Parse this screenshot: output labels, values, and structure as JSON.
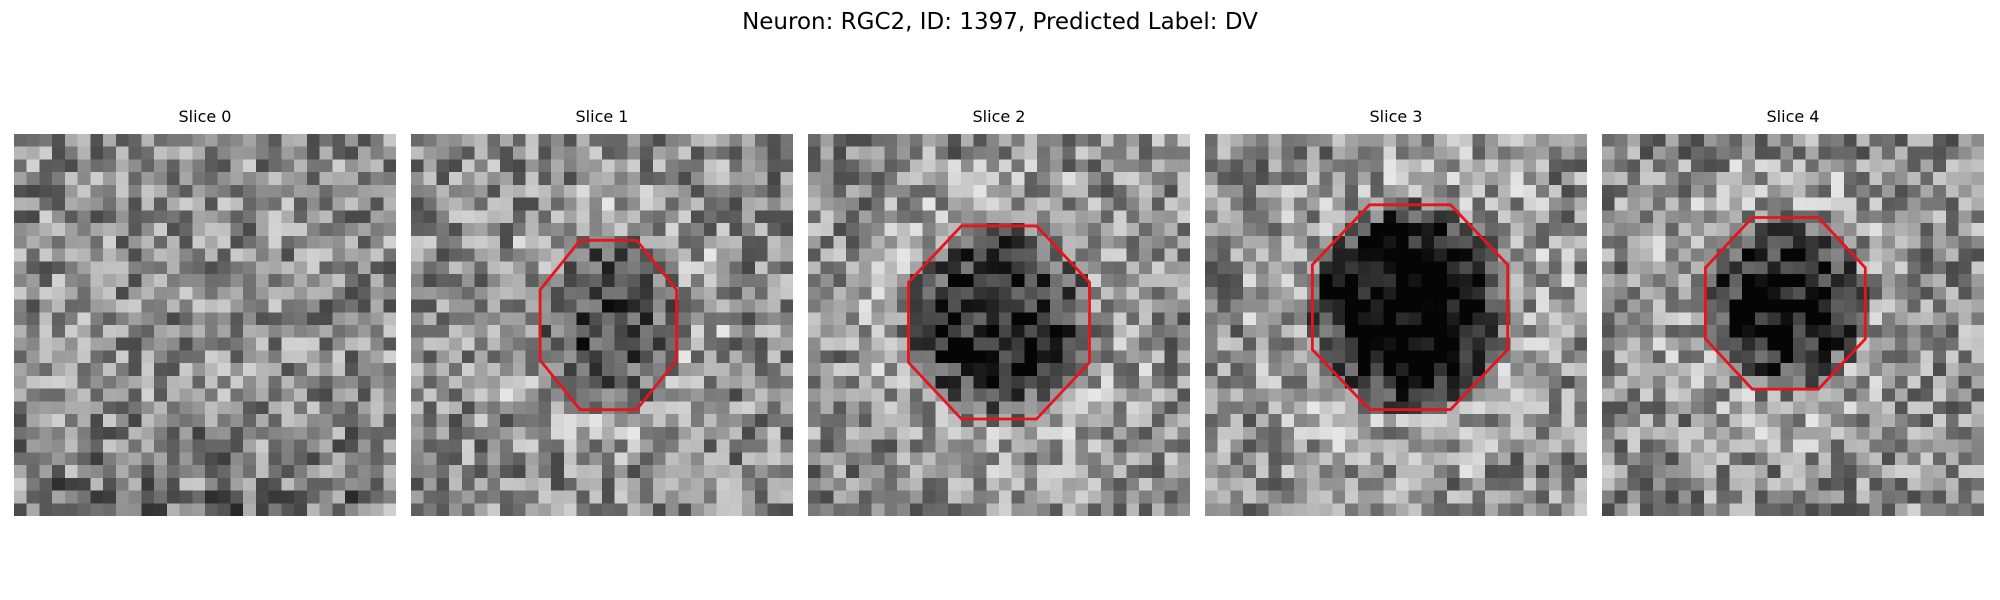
{
  "figure": {
    "title": "Neuron: RGC2, ID: 1397, Predicted Label: DV"
  },
  "colors": {
    "contour": "#e8141b",
    "background": "#ffffff"
  },
  "image_grid": {
    "rows": 30,
    "cols": 30,
    "colormap": "gray"
  },
  "slices": [
    {
      "label": "Slice 0",
      "has_contour": false,
      "center_darkness": 0.0,
      "seed": 11
    },
    {
      "label": "Slice 1",
      "has_contour": true,
      "center_darkness": 0.35,
      "seed": 23
    },
    {
      "label": "Slice 2",
      "has_contour": true,
      "center_darkness": 0.55,
      "seed": 37
    },
    {
      "label": "Slice 3",
      "has_contour": true,
      "center_darkness": 0.85,
      "seed": 51
    },
    {
      "label": "Slice 4",
      "has_contour": true,
      "center_darkness": 0.6,
      "seed": 67
    }
  ]
}
